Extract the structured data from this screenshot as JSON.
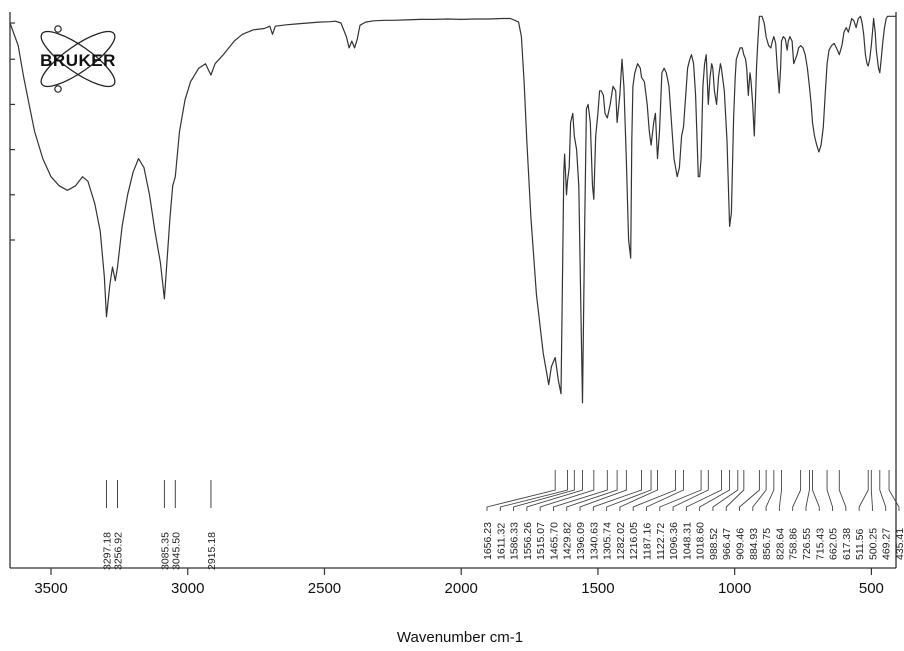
{
  "logo": {
    "text": "BRUKER"
  },
  "chart_data": {
    "type": "line",
    "xlabel": "Wavenumber cm-1",
    "ylabel": "",
    "xlim": [
      3650,
      410
    ],
    "x_reversed": true,
    "x_ticks": [
      {
        "value": 3500,
        "label": "3500"
      },
      {
        "value": 3000,
        "label": "3000"
      },
      {
        "value": 2500,
        "label": "2500"
      },
      {
        "value": 2000,
        "label": "2000"
      },
      {
        "value": 1500,
        "label": "1500"
      },
      {
        "value": 1000,
        "label": "1000"
      },
      {
        "value": 500,
        "label": "500"
      }
    ],
    "ylim": [
      0,
      100
    ],
    "y_tick_values": [
      98,
      90,
      80,
      70,
      60,
      50
    ],
    "y_tick_labels_visible": false,
    "grid": false,
    "line_color": "#333333",
    "series": [
      {
        "points": [
          [
            3650,
            98
          ],
          [
            3620,
            93
          ],
          [
            3600,
            86
          ],
          [
            3580,
            80
          ],
          [
            3560,
            74
          ],
          [
            3530,
            68
          ],
          [
            3500,
            64
          ],
          [
            3470,
            62
          ],
          [
            3440,
            61
          ],
          [
            3410,
            62
          ],
          [
            3385,
            64
          ],
          [
            3365,
            63
          ],
          [
            3340,
            58
          ],
          [
            3320,
            52
          ],
          [
            3305,
            42
          ],
          [
            3297.18,
            33
          ],
          [
            3285,
            40
          ],
          [
            3275,
            44
          ],
          [
            3265,
            41
          ],
          [
            3256.92,
            44
          ],
          [
            3240,
            53
          ],
          [
            3220,
            60
          ],
          [
            3200,
            65
          ],
          [
            3180,
            68
          ],
          [
            3160,
            66
          ],
          [
            3140,
            60
          ],
          [
            3120,
            52
          ],
          [
            3100,
            45
          ],
          [
            3085.35,
            37
          ],
          [
            3075,
            46
          ],
          [
            3065,
            55
          ],
          [
            3055,
            62
          ],
          [
            3045.5,
            64
          ],
          [
            3030,
            74
          ],
          [
            3010,
            81
          ],
          [
            2990,
            85
          ],
          [
            2960,
            88
          ],
          [
            2935,
            89
          ],
          [
            2915.18,
            86.5
          ],
          [
            2900,
            89
          ],
          [
            2870,
            91
          ],
          [
            2830,
            94
          ],
          [
            2800,
            95.5
          ],
          [
            2760,
            96.5
          ],
          [
            2720,
            96.8
          ],
          [
            2700,
            97.3
          ],
          [
            2690,
            95.5
          ],
          [
            2680,
            97.3
          ],
          [
            2640,
            97.6
          ],
          [
            2600,
            97.8
          ],
          [
            2560,
            98
          ],
          [
            2520,
            98.2
          ],
          [
            2480,
            98.3
          ],
          [
            2460,
            98.4
          ],
          [
            2440,
            98
          ],
          [
            2420,
            95
          ],
          [
            2410,
            92.5
          ],
          [
            2400,
            94
          ],
          [
            2390,
            92.5
          ],
          [
            2380,
            94.5
          ],
          [
            2370,
            97.5
          ],
          [
            2350,
            98.2
          ],
          [
            2320,
            98.5
          ],
          [
            2280,
            98.6
          ],
          [
            2250,
            98.6
          ],
          [
            2200,
            98.7
          ],
          [
            2150,
            98.8
          ],
          [
            2100,
            98.8
          ],
          [
            2050,
            98.9
          ],
          [
            2000,
            98.8
          ],
          [
            1950,
            98.9
          ],
          [
            1900,
            98.9
          ],
          [
            1850,
            99
          ],
          [
            1820,
            99
          ],
          [
            1800,
            98.5
          ],
          [
            1790,
            98.2
          ],
          [
            1780,
            95
          ],
          [
            1770,
            85
          ],
          [
            1760,
            72
          ],
          [
            1745,
            55
          ],
          [
            1725,
            38
          ],
          [
            1700,
            25
          ],
          [
            1680,
            18
          ],
          [
            1670,
            22
          ],
          [
            1656.23,
            24
          ],
          [
            1645,
            19
          ],
          [
            1635,
            16
          ],
          [
            1630,
            40
          ],
          [
            1625,
            65
          ],
          [
            1622,
            69
          ],
          [
            1618,
            64
          ],
          [
            1615,
            60
          ],
          [
            1611.32,
            63
          ],
          [
            1605,
            66
          ],
          [
            1600,
            76
          ],
          [
            1592,
            78
          ],
          [
            1586.33,
            73
          ],
          [
            1578,
            70
          ],
          [
            1570,
            62
          ],
          [
            1562,
            33
          ],
          [
            1556.26,
            14
          ],
          [
            1548,
            55
          ],
          [
            1542,
            79
          ],
          [
            1536,
            80
          ],
          [
            1528,
            76
          ],
          [
            1520,
            62
          ],
          [
            1515.07,
            59
          ],
          [
            1508,
            73
          ],
          [
            1500,
            78
          ],
          [
            1494,
            83
          ],
          [
            1488,
            83
          ],
          [
            1480,
            82
          ],
          [
            1474,
            78
          ],
          [
            1465.7,
            77
          ],
          [
            1455,
            80
          ],
          [
            1445,
            84
          ],
          [
            1435,
            83
          ],
          [
            1429.82,
            76
          ],
          [
            1420,
            82
          ],
          [
            1412,
            90
          ],
          [
            1405,
            84
          ],
          [
            1396.09,
            68
          ],
          [
            1388,
            50
          ],
          [
            1380,
            46
          ],
          [
            1376,
            72
          ],
          [
            1372,
            84
          ],
          [
            1365,
            87
          ],
          [
            1355,
            89
          ],
          [
            1345,
            88
          ],
          [
            1340.63,
            86
          ],
          [
            1330,
            85
          ],
          [
            1320,
            80
          ],
          [
            1312,
            74
          ],
          [
            1305.74,
            71
          ],
          [
            1296,
            76
          ],
          [
            1290,
            78
          ],
          [
            1282.02,
            68
          ],
          [
            1275,
            74
          ],
          [
            1266,
            87
          ],
          [
            1258,
            88
          ],
          [
            1250,
            87
          ],
          [
            1240,
            84
          ],
          [
            1230,
            75
          ],
          [
            1222,
            68
          ],
          [
            1216.05,
            66
          ],
          [
            1210,
            64
          ],
          [
            1202,
            66
          ],
          [
            1194,
            73
          ],
          [
            1187.16,
            75
          ],
          [
            1180,
            81
          ],
          [
            1172,
            88
          ],
          [
            1164,
            90
          ],
          [
            1158,
            91
          ],
          [
            1150,
            89
          ],
          [
            1143,
            82
          ],
          [
            1133,
            64
          ],
          [
            1128,
            64
          ],
          [
            1122.72,
            68
          ],
          [
            1116,
            84
          ],
          [
            1110,
            89
          ],
          [
            1104,
            91
          ],
          [
            1096.36,
            80
          ],
          [
            1090,
            86
          ],
          [
            1084,
            89
          ],
          [
            1080,
            88
          ],
          [
            1074,
            83
          ],
          [
            1066,
            80
          ],
          [
            1059,
            86
          ],
          [
            1052,
            89
          ],
          [
            1048.31,
            88
          ],
          [
            1038,
            83
          ],
          [
            1028,
            72
          ],
          [
            1018.6,
            53
          ],
          [
            1012,
            56
          ],
          [
            1004,
            77
          ],
          [
            998,
            86
          ],
          [
            994,
            90
          ],
          [
            988.52,
            91
          ],
          [
            980,
            92.5
          ],
          [
            972,
            92.5
          ],
          [
            966.47,
            91
          ],
          [
            960,
            90
          ],
          [
            956,
            88
          ],
          [
            950,
            82
          ],
          [
            944,
            87
          ],
          [
            940,
            85
          ],
          [
            934,
            80
          ],
          [
            928,
            73
          ],
          [
            920,
            88
          ],
          [
            916,
            93
          ],
          [
            909.46,
            99.5
          ],
          [
            900,
            99.5
          ],
          [
            892,
            98
          ],
          [
            884.93,
            95
          ],
          [
            876,
            93
          ],
          [
            868,
            92.5
          ],
          [
            862,
            94
          ],
          [
            856.75,
            95
          ],
          [
            850,
            93.5
          ],
          [
            844,
            88
          ],
          [
            837,
            82.5
          ],
          [
            832,
            88
          ],
          [
            828.64,
            94
          ],
          [
            822,
            95
          ],
          [
            815,
            94.5
          ],
          [
            808,
            92
          ],
          [
            804,
            94
          ],
          [
            798,
            95
          ],
          [
            790,
            94
          ],
          [
            784,
            89
          ],
          [
            778,
            90
          ],
          [
            772,
            91
          ],
          [
            766,
            92.5
          ],
          [
            758.86,
            93
          ],
          [
            750,
            92.5
          ],
          [
            742,
            91
          ],
          [
            734,
            88
          ],
          [
            726.55,
            84
          ],
          [
            720,
            80
          ],
          [
            715.43,
            76
          ],
          [
            708,
            73
          ],
          [
            700,
            71
          ],
          [
            692,
            69.5
          ],
          [
            684,
            71
          ],
          [
            676,
            75
          ],
          [
            668,
            83
          ],
          [
            662.05,
            89
          ],
          [
            655,
            92
          ],
          [
            646,
            93
          ],
          [
            636,
            93.5
          ],
          [
            624,
            92
          ],
          [
            617.38,
            91
          ],
          [
            608,
            93
          ],
          [
            600,
            96
          ],
          [
            592,
            97
          ],
          [
            584,
            96
          ],
          [
            578,
            97.5
          ],
          [
            572,
            99
          ],
          [
            564,
            98.5
          ],
          [
            556,
            97
          ],
          [
            548,
            99
          ],
          [
            540,
            99.5
          ],
          [
            534,
            98
          ],
          [
            528,
            95.5
          ],
          [
            522,
            91
          ],
          [
            516,
            89
          ],
          [
            511.56,
            88.5
          ],
          [
            506,
            90
          ],
          [
            500.25,
            93
          ],
          [
            496,
            96
          ],
          [
            492,
            99
          ],
          [
            486,
            96
          ],
          [
            482,
            92
          ],
          [
            478,
            90
          ],
          [
            474,
            88
          ],
          [
            469.27,
            87
          ],
          [
            464,
            90
          ],
          [
            458,
            94
          ],
          [
            452,
            97
          ],
          [
            446,
            99
          ],
          [
            441,
            99.5
          ],
          [
            435.41,
            99.5
          ],
          [
            420,
            99.5
          ],
          [
            410,
            99.5
          ]
        ]
      }
    ],
    "peak_labels": [
      "3297.18",
      "3256.92",
      "3085.35",
      "3045.50",
      "2915.18",
      "1656.23",
      "1611.32",
      "1586.33",
      "1556.26",
      "1515.07",
      "1465.70",
      "1429.82",
      "1396.09",
      "1340.63",
      "1305.74",
      "1282.02",
      "1216.05",
      "1187.16",
      "1122.72",
      "1096.36",
      "1048.31",
      "1018.60",
      "988.52",
      "966.47",
      "909.46",
      "884.93",
      "856.75",
      "828.64",
      "758.86",
      "726.55",
      "715.43",
      "662.05",
      "617.38",
      "511.56",
      "500.25",
      "469.27",
      "435.41"
    ],
    "peak_groups": {
      "left": {
        "values": [
          3297.18,
          3256.92,
          3085.35,
          3045.5,
          2915.18
        ]
      },
      "right": {
        "values": [
          1656.23,
          1611.32,
          1586.33,
          1556.26,
          1515.07,
          1465.7,
          1429.82,
          1396.09,
          1340.63,
          1305.74,
          1282.02,
          1216.05,
          1187.16,
          1122.72,
          1096.36,
          1048.31,
          1018.6,
          988.52,
          966.47,
          909.46,
          884.93,
          856.75,
          828.64,
          758.86,
          726.55,
          715.43,
          662.05,
          617.38,
          511.56,
          500.25,
          469.27,
          435.41
        ]
      }
    }
  }
}
